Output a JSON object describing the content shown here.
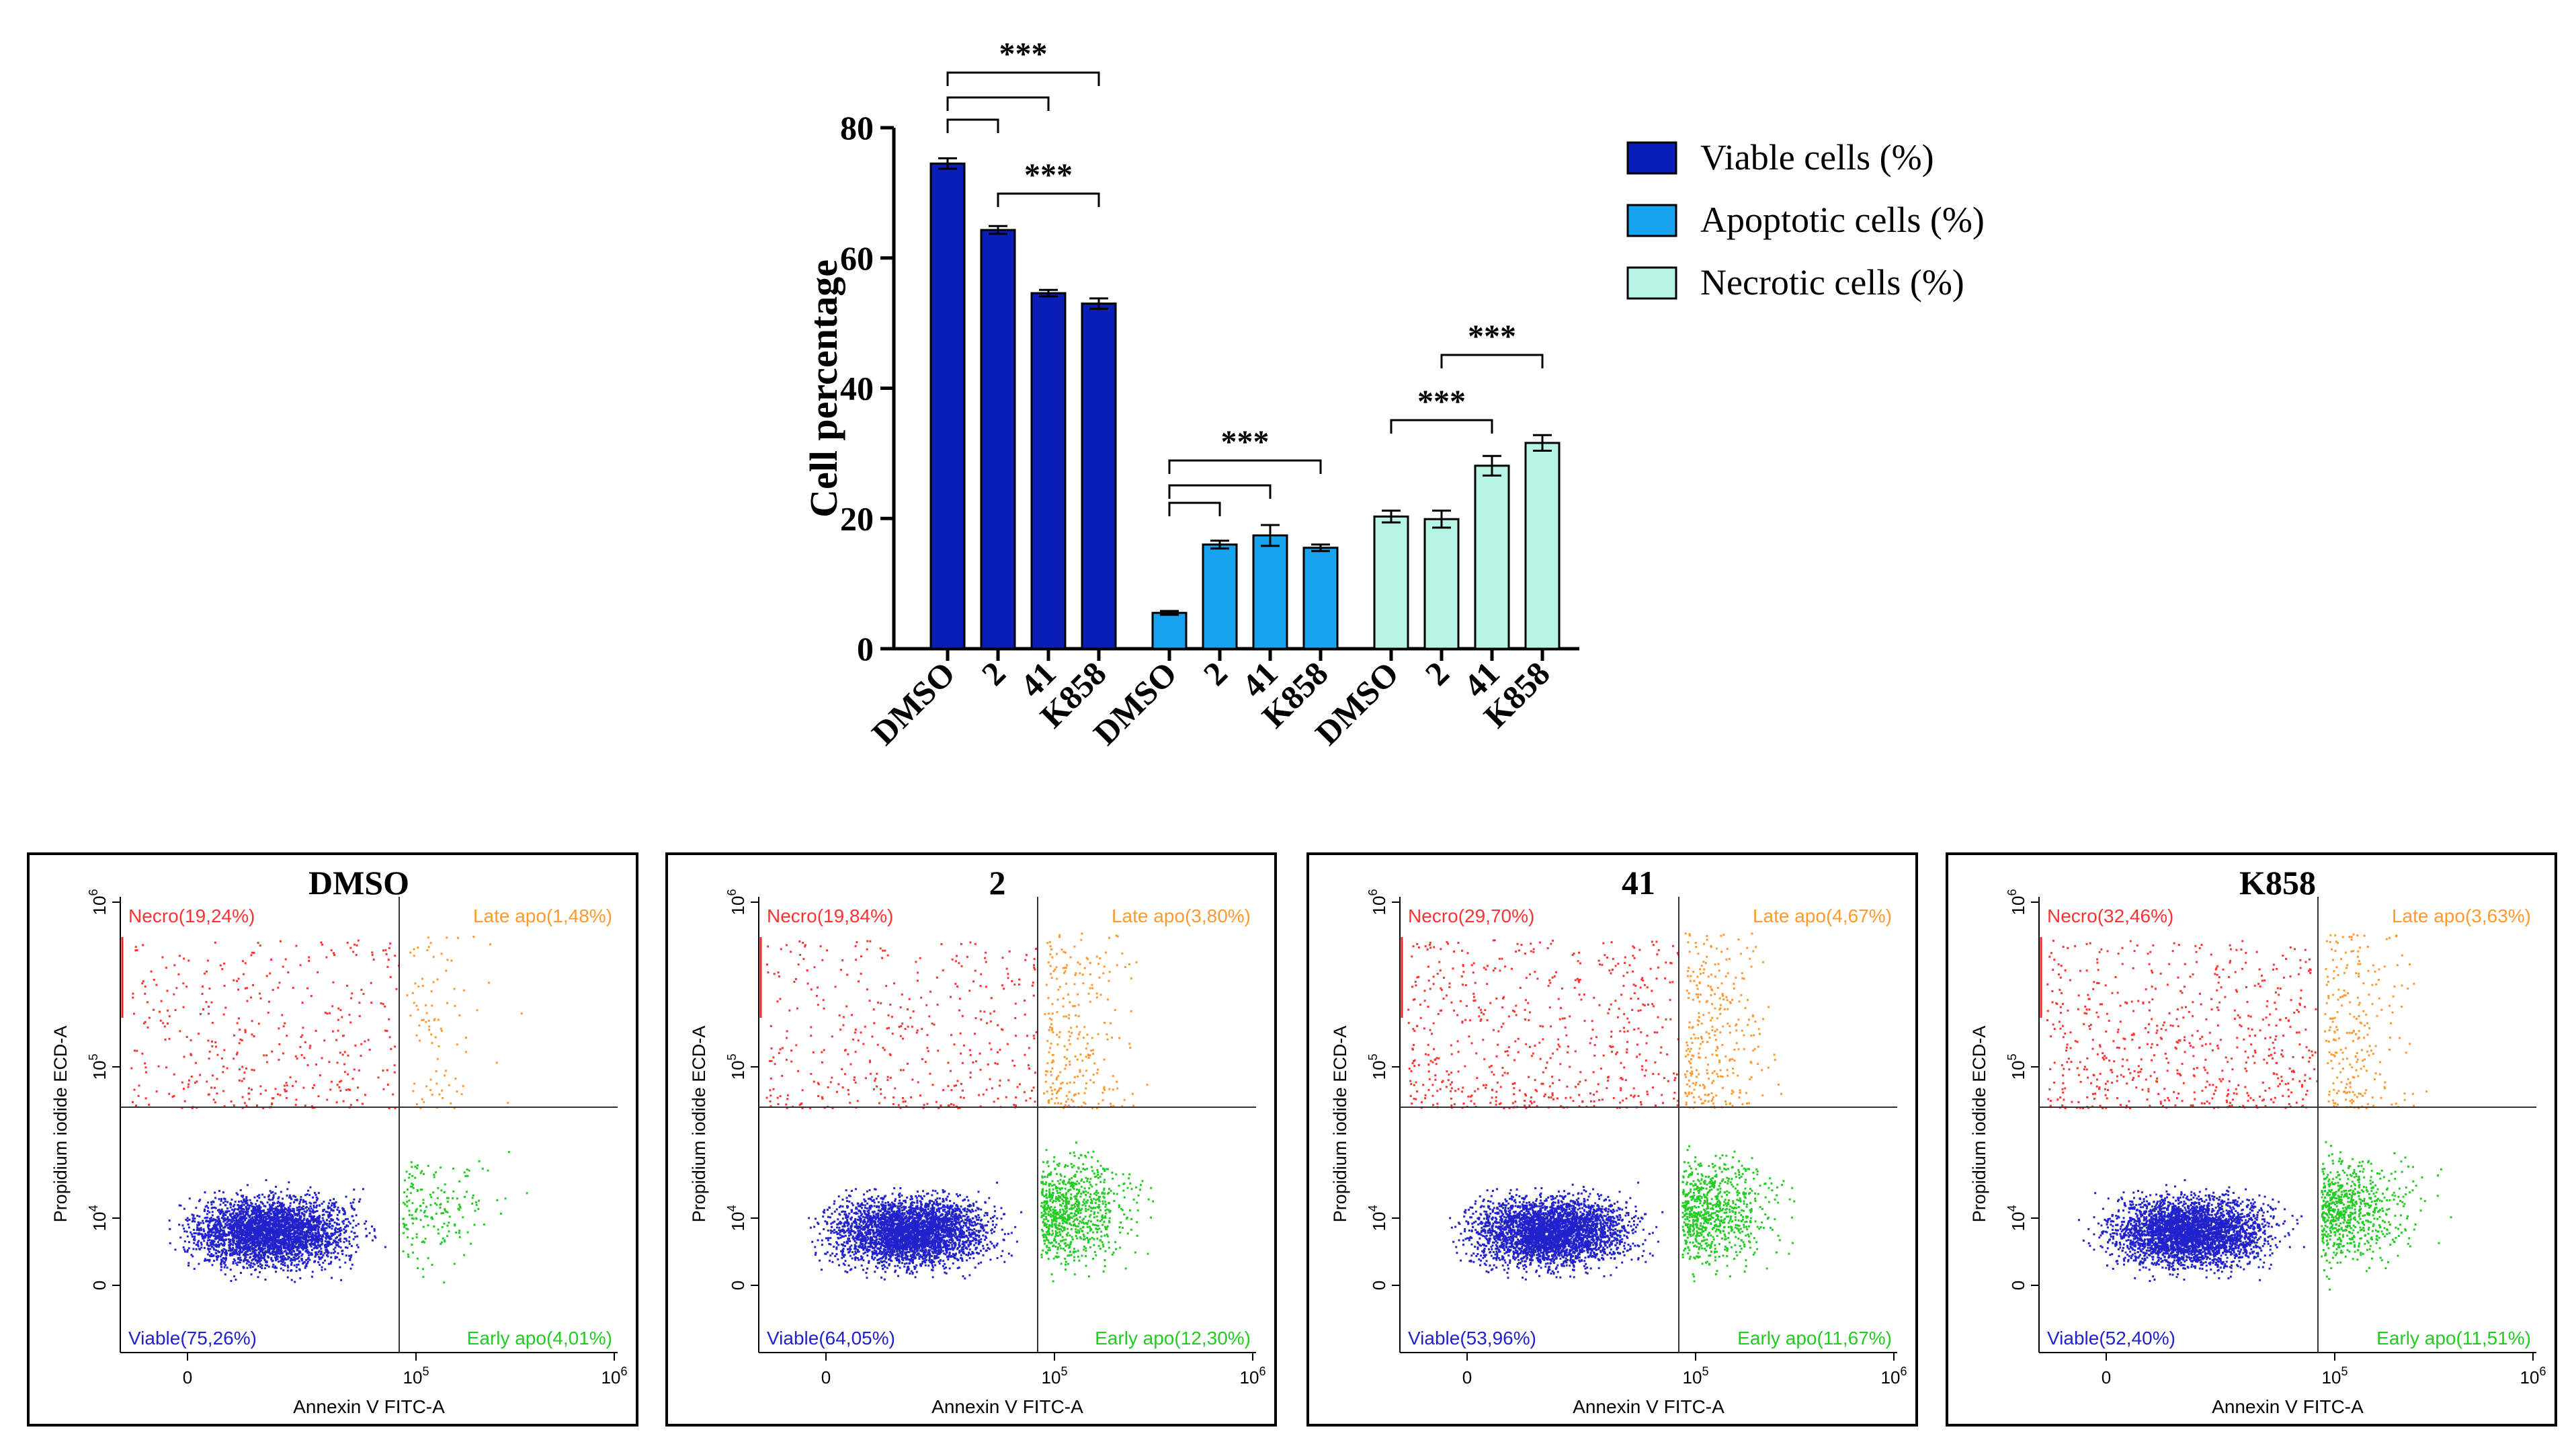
{
  "chart_data": [
    {
      "type": "bar",
      "ylabel": "Cell percentage",
      "xlabel": "",
      "ylim": [
        0,
        80
      ],
      "yticks": [
        "0",
        "20",
        "40",
        "60",
        "80"
      ],
      "groups": [
        {
          "name": "Viable cells (%)",
          "color": "#0a1db4",
          "categories": [
            "DMSO",
            "2",
            "41",
            "K858"
          ],
          "values": [
            74.5,
            64.3,
            54.6,
            53.0
          ],
          "errors": [
            0.8,
            0.6,
            0.5,
            0.8
          ]
        },
        {
          "name": "Apoptotic cells (%)",
          "color": "#17a3ee",
          "categories": [
            "DMSO",
            "2",
            "41",
            "K858"
          ],
          "values": [
            5.5,
            16.0,
            17.4,
            15.5
          ],
          "errors": [
            0.3,
            0.6,
            1.6,
            0.5
          ]
        },
        {
          "name": "Necrotic cells (%)",
          "color": "#b6f4e5",
          "categories": [
            "DMSO",
            "2",
            "41",
            "K858"
          ],
          "values": [
            20.3,
            19.9,
            28.1,
            31.6
          ],
          "errors": [
            0.9,
            1.3,
            1.5,
            1.2
          ]
        }
      ],
      "significance": [
        {
          "group": 0,
          "from": 0,
          "to": 3,
          "label": "***"
        },
        {
          "group": 0,
          "from": 0,
          "to": 2,
          "label": ""
        },
        {
          "group": 0,
          "from": 0,
          "to": 1,
          "label": ""
        },
        {
          "group": 0,
          "from": 1,
          "to": 3,
          "label": "***"
        },
        {
          "group": 1,
          "from": 0,
          "to": 3,
          "label": "***"
        },
        {
          "group": 1,
          "from": 0,
          "to": 2,
          "label": ""
        },
        {
          "group": 1,
          "from": 0,
          "to": 1,
          "label": ""
        },
        {
          "group": 2,
          "from": 1,
          "to": 3,
          "label": "***"
        },
        {
          "group": 2,
          "from": 0,
          "to": 2,
          "label": "***"
        }
      ],
      "legend": {
        "position": "top-right"
      }
    },
    {
      "type": "scatter",
      "xlabel": "Annexin V FITC-A",
      "ylabel": "Propidium iodide ECD-A",
      "xticks": [
        "0",
        "10^5",
        "10^6"
      ],
      "yticks": [
        "0",
        "10^4",
        "10^5",
        "10^6"
      ],
      "panels": [
        {
          "title": "DMSO",
          "necro": "Necro(19,24%)",
          "late": "Late apo(1,48%)",
          "viable": "Viable(75,26%)",
          "early": "Early apo(4,01%)"
        },
        {
          "title": "2",
          "necro": "Necro(19,84%)",
          "late": "Late apo(3,80%)",
          "viable": "Viable(64,05%)",
          "early": "Early apo(12,30%)"
        },
        {
          "title": "41",
          "necro": "Necro(29,70%)",
          "late": "Late apo(4,67%)",
          "viable": "Viable(53,96%)",
          "early": "Early apo(11,67%)"
        },
        {
          "title": "K858",
          "necro": "Necro(32,46%)",
          "late": "Late apo(3,63%)",
          "viable": "Viable(52,40%)",
          "early": "Early apo(11,51%)"
        }
      ]
    }
  ],
  "colors": {
    "necro": "#ff3333",
    "late": "#ff9933",
    "viable": "#2222cc",
    "early": "#22cc22"
  }
}
